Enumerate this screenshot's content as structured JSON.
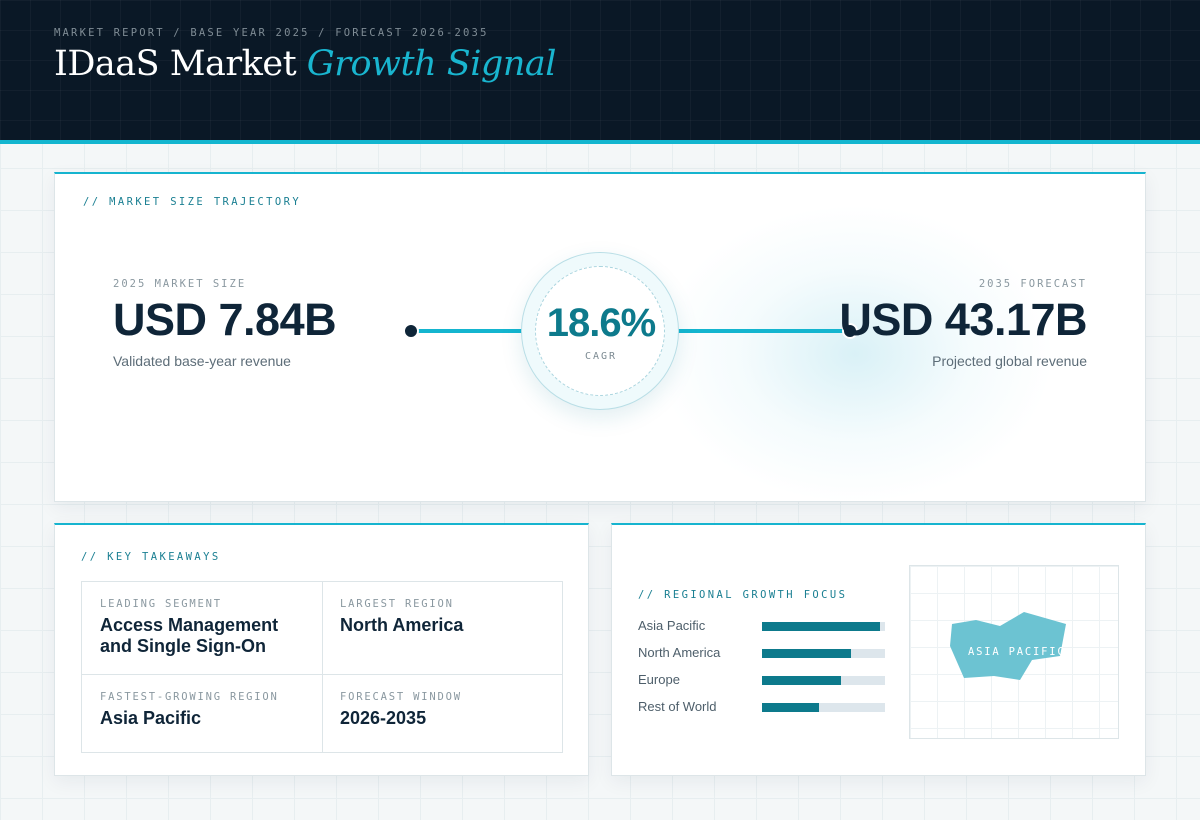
{
  "header": {
    "eyebrow": "MARKET REPORT / BASE YEAR 2025 / FORECAST 2026-2035",
    "title_main": "IDaaS Market",
    "title_accent": "Growth Signal"
  },
  "trajectory": {
    "label": "// MARKET SIZE TRAJECTORY",
    "start": {
      "label": "2025 MARKET SIZE",
      "value": "USD 7.84B",
      "sub": "Validated base-year revenue"
    },
    "cagr": {
      "value": "18.6%",
      "label": "CAGR"
    },
    "end": {
      "label": "2035 FORECAST",
      "value": "USD 43.17B",
      "sub": "Projected global revenue"
    }
  },
  "takeaways": {
    "label": "// KEY TAKEAWAYS",
    "items": [
      {
        "key": "LEADING SEGMENT",
        "value": "Access Management and Single Sign-On"
      },
      {
        "key": "LARGEST REGION",
        "value": "North America"
      },
      {
        "key": "FASTEST-GROWING REGION",
        "value": "Asia Pacific"
      },
      {
        "key": "FORECAST WINDOW",
        "value": "2026-2035"
      }
    ]
  },
  "regional": {
    "label": "// REGIONAL GROWTH FOCUS",
    "regions": [
      {
        "name": "Asia Pacific",
        "level": 0.96
      },
      {
        "name": "North America",
        "level": 0.72
      },
      {
        "name": "Europe",
        "level": 0.64
      },
      {
        "name": "Rest of World",
        "level": 0.46
      }
    ],
    "map_label": "ASIA PACIFIC"
  },
  "colors": {
    "header_bg": "#0a1826",
    "accent": "#16b4cf",
    "accent_dark": "#0d7a8c",
    "text_dark": "#0f2538"
  }
}
